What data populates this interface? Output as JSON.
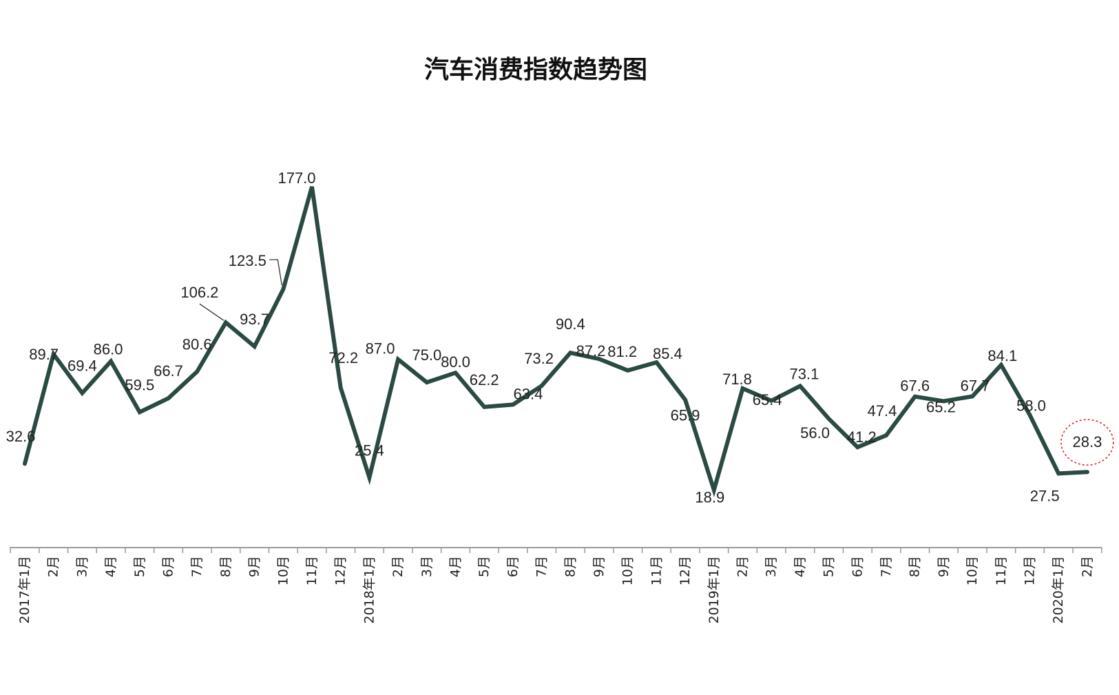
{
  "chart_data": {
    "type": "line",
    "title": "汽车消费指数趋势图",
    "xlabel": "",
    "ylabel": "",
    "ylim": [
      0,
      200
    ],
    "grid": false,
    "legend": "none",
    "colors": {
      "line": "#2b4a44",
      "highlight": "#d62c2c",
      "axis": "#9a9a9a"
    },
    "categories": [
      "2017年1月",
      "2月",
      "3月",
      "4月",
      "5月",
      "6月",
      "7月",
      "8月",
      "9月",
      "10月",
      "11月",
      "12月",
      "2018年1月",
      "2月",
      "3月",
      "4月",
      "5月",
      "6月",
      "7月",
      "8月",
      "9月",
      "10月",
      "11月",
      "12月",
      "2019年1月",
      "2月",
      "3月",
      "4月",
      "5月",
      "6月",
      "7月",
      "8月",
      "9月",
      "10月",
      "11月",
      "12月",
      "2020年1月",
      "2月"
    ],
    "series": [
      {
        "values": [
          32.6,
          89.7,
          69.4,
          86.0,
          59.5,
          66.7,
          80.6,
          106.2,
          93.7,
          123.5,
          177.0,
          72.2,
          25.4,
          87.0,
          75.0,
          80.0,
          62.2,
          63.4,
          73.2,
          90.4,
          87.2,
          81.2,
          85.4,
          65.9,
          18.9,
          71.8,
          65.4,
          73.1,
          56.0,
          41.2,
          47.4,
          67.6,
          65.2,
          67.7,
          84.1,
          58.0,
          27.5,
          28.3
        ]
      }
    ],
    "data_labels": [
      "32.6",
      "89.7",
      "69.4",
      "86.0",
      "59.5",
      "66.7",
      "80.6",
      "106.2",
      "93.7",
      "123.5",
      "177.0",
      "72.2",
      "25.4",
      "87.0",
      "75.0",
      "80.0",
      "62.2",
      "63.4",
      "73.2",
      "90.4",
      "87.2",
      "81.2",
      "85.4",
      "65.9",
      "18.9",
      "71.8",
      "65.4",
      "73.1",
      "56.0",
      "41.2",
      "47.4",
      "67.6",
      "65.2",
      "67.7",
      "84.1",
      "58.0",
      "27.5",
      "28.3"
    ],
    "highlighted_point": "28.3"
  }
}
